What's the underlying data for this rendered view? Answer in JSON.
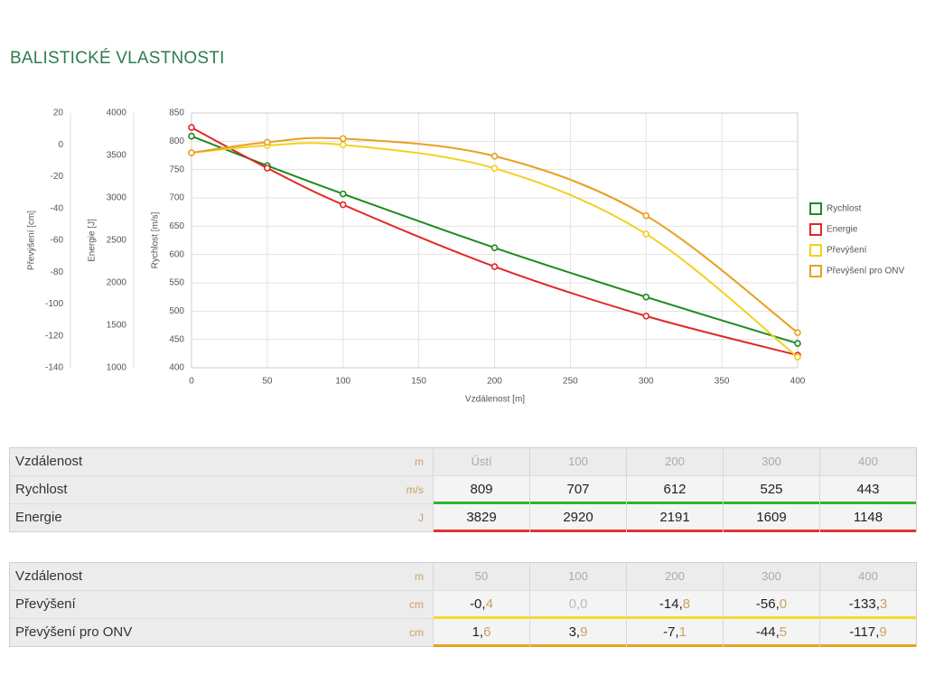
{
  "page_title": "BALISTICKÉ VLASTNOSTI",
  "chart_data": {
    "type": "line",
    "xlabel": "Vzdálenost [m]",
    "ylabel": "Rychlost [m/s]",
    "y2label": "Energie [J]",
    "y3label": "Převýšení [cm]",
    "x": [
      0,
      50,
      100,
      200,
      300,
      400
    ],
    "xlim": [
      0,
      400
    ],
    "xticks": [
      0,
      50,
      100,
      150,
      200,
      250,
      300,
      350,
      400
    ],
    "ylim": [
      400,
      850
    ],
    "yticks": [
      400,
      450,
      500,
      550,
      600,
      650,
      700,
      750,
      800,
      850
    ],
    "y2lim": [
      1000,
      4000
    ],
    "y2ticks": [
      1000,
      1500,
      2000,
      2500,
      3000,
      3500,
      4000
    ],
    "y3lim": [
      -140,
      20
    ],
    "y3ticks": [
      -140,
      -120,
      -100,
      -80,
      -60,
      -40,
      -20,
      0,
      20
    ],
    "grid": true,
    "legend": "right",
    "series": [
      {
        "name": "Rychlost",
        "color": "#1f8a1f",
        "values": [
          809,
          757,
          707,
          612,
          525,
          443
        ]
      },
      {
        "name": "Energie",
        "color": "#e02828",
        "axis": "y2",
        "values": [
          3829,
          3351,
          2920,
          2191,
          1609,
          1148
        ]
      },
      {
        "name": "Převýšení",
        "color": "#f2d01e",
        "axis": "y3",
        "values": [
          -5,
          -0.4,
          0.0,
          -14.8,
          -56.0,
          -133.3
        ]
      },
      {
        "name": "Převýšení pro ONV",
        "color": "#e9a020",
        "axis": "y3",
        "values": [
          -5,
          1.6,
          3.9,
          -7.1,
          -44.5,
          -117.9
        ]
      }
    ]
  },
  "tables": [
    {
      "header": {
        "label": "Vzdálenost",
        "unit": "m",
        "cells": [
          "Ústí",
          100,
          200,
          300,
          400
        ]
      },
      "rows": [
        {
          "label": "Rychlost",
          "unit": "m/s",
          "color": "#2cb52c",
          "cells": [
            809,
            707,
            612,
            525,
            443
          ]
        },
        {
          "label": "Energie",
          "unit": "J",
          "color": "#e23232",
          "cells": [
            3829,
            2920,
            2191,
            1609,
            1148
          ]
        }
      ]
    },
    {
      "header": {
        "label": "Vzdálenost",
        "unit": "m",
        "cells": [
          50,
          100,
          200,
          300,
          400
        ]
      },
      "rows": [
        {
          "label": "Převýšení",
          "unit": "cm",
          "color": "#f5da2a",
          "cells": [
            "-0,4",
            "0,0",
            "-14,8",
            "-56,0",
            "-133,3"
          ]
        },
        {
          "label": "Převýšení pro ONV",
          "unit": "cm",
          "color": "#e9a020",
          "cells": [
            "1,6",
            "3,9",
            "-7,1",
            "-44,5",
            "-117,9"
          ]
        }
      ]
    }
  ]
}
